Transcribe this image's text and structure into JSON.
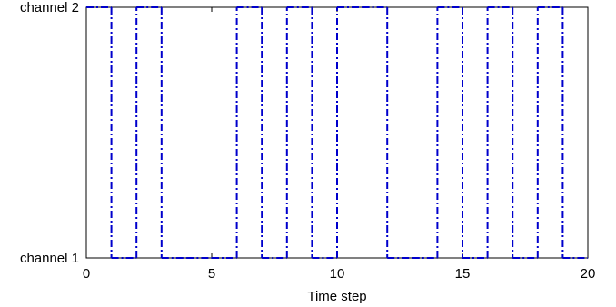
{
  "chart_data": {
    "type": "line",
    "title": "",
    "xlabel": "Time step",
    "ylabel": "",
    "xlim": [
      0,
      20
    ],
    "ylim": [
      1,
      2
    ],
    "x_ticks": [
      0,
      5,
      10,
      15,
      20
    ],
    "y_ticks": [
      {
        "value": 1,
        "label": "channel 1"
      },
      {
        "value": 2,
        "label": "channel 2"
      }
    ],
    "grid": false,
    "series": [
      {
        "line_style": "dash-dot",
        "color": "#0000cc",
        "step": true,
        "x": [
          0,
          1,
          2,
          3,
          4,
          5,
          6,
          7,
          8,
          9,
          10,
          11,
          12,
          13,
          14,
          15,
          16,
          17,
          18,
          19,
          20
        ],
        "values": [
          2,
          1,
          2,
          1,
          1,
          1,
          2,
          1,
          2,
          1,
          2,
          2,
          1,
          1,
          2,
          1,
          2,
          1,
          2,
          1,
          1
        ]
      }
    ]
  }
}
